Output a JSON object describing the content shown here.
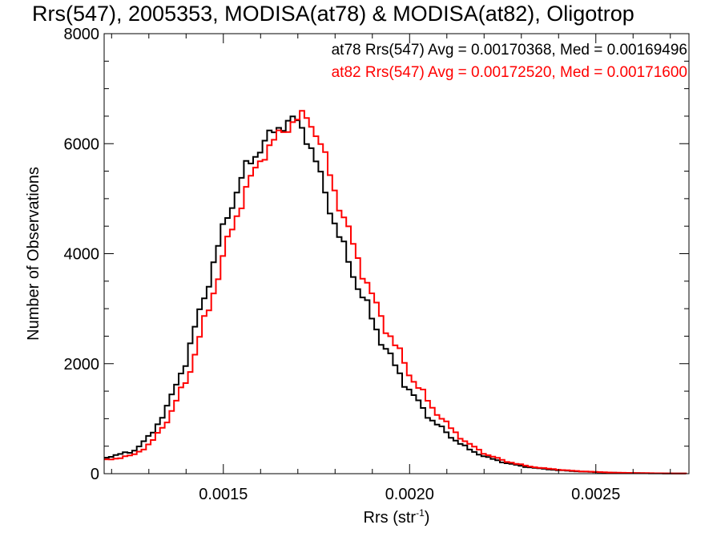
{
  "chart_data": {
    "type": "line",
    "title": "Rrs(547), 2005353, MODISA(at78) & MODISA(at82), Oligotrop",
    "xlabel": "Rrs (str",
    "xlabel_sup": "-1",
    "xlabel_close": ")",
    "ylabel": "Number of Observations",
    "xlim": [
      0.00118,
      0.00275
    ],
    "ylim": [
      0,
      8000
    ],
    "xticks": [
      0.0015,
      0.002,
      0.0025
    ],
    "xtick_labels": [
      "0.0015",
      "0.0020",
      "0.0025"
    ],
    "yticks": [
      0,
      2000,
      4000,
      6000,
      8000
    ],
    "ytick_labels": [
      "0",
      "2000",
      "4000",
      "6000",
      "8000"
    ],
    "grid": false,
    "legend_placement": "top-right",
    "series": [
      {
        "name": "at78",
        "color": "#000000",
        "legend_text": "at78 Rrs(547) Avg = 0.00170368, Med = 0.00169496",
        "x": [
          0.00118,
          0.00125,
          0.0013,
          0.00135,
          0.0014,
          0.00145,
          0.0015,
          0.00155,
          0.0016,
          0.00165,
          0.00168,
          0.0017,
          0.00172,
          0.00175,
          0.0018,
          0.00185,
          0.0019,
          0.00195,
          0.002,
          0.00205,
          0.0021,
          0.00215,
          0.0022,
          0.00225,
          0.0023,
          0.00235,
          0.0024,
          0.00245,
          0.0025,
          0.00255,
          0.0026,
          0.00265,
          0.0027,
          0.00275
        ],
        "y": [
          300,
          400,
          700,
          1300,
          2200,
          3400,
          4600,
          5500,
          6000,
          6350,
          6420,
          6350,
          6100,
          5500,
          4400,
          3500,
          2700,
          2000,
          1450,
          1000,
          700,
          450,
          300,
          200,
          130,
          90,
          60,
          40,
          25,
          15,
          10,
          6,
          4,
          2
        ]
      },
      {
        "name": "at82",
        "color": "#ff0000",
        "legend_text": "at82 Rrs(547) Avg = 0.00172520, Med = 0.00171600",
        "x": [
          0.00118,
          0.00125,
          0.0013,
          0.00135,
          0.0014,
          0.00145,
          0.0015,
          0.00155,
          0.0016,
          0.00165,
          0.00168,
          0.0017,
          0.00172,
          0.00175,
          0.0018,
          0.00185,
          0.0019,
          0.00195,
          0.002,
          0.00205,
          0.0021,
          0.00215,
          0.0022,
          0.00225,
          0.0023,
          0.00235,
          0.0024,
          0.00245,
          0.0025,
          0.00255,
          0.0026,
          0.00265,
          0.0027,
          0.00275
        ],
        "y": [
          250,
          330,
          550,
          1050,
          1800,
          2900,
          4100,
          5100,
          5800,
          6200,
          6400,
          6450,
          6500,
          6100,
          5000,
          4000,
          3100,
          2400,
          1750,
          1250,
          850,
          550,
          350,
          230,
          150,
          100,
          70,
          45,
          30,
          18,
          12,
          8,
          5,
          3
        ]
      }
    ]
  }
}
